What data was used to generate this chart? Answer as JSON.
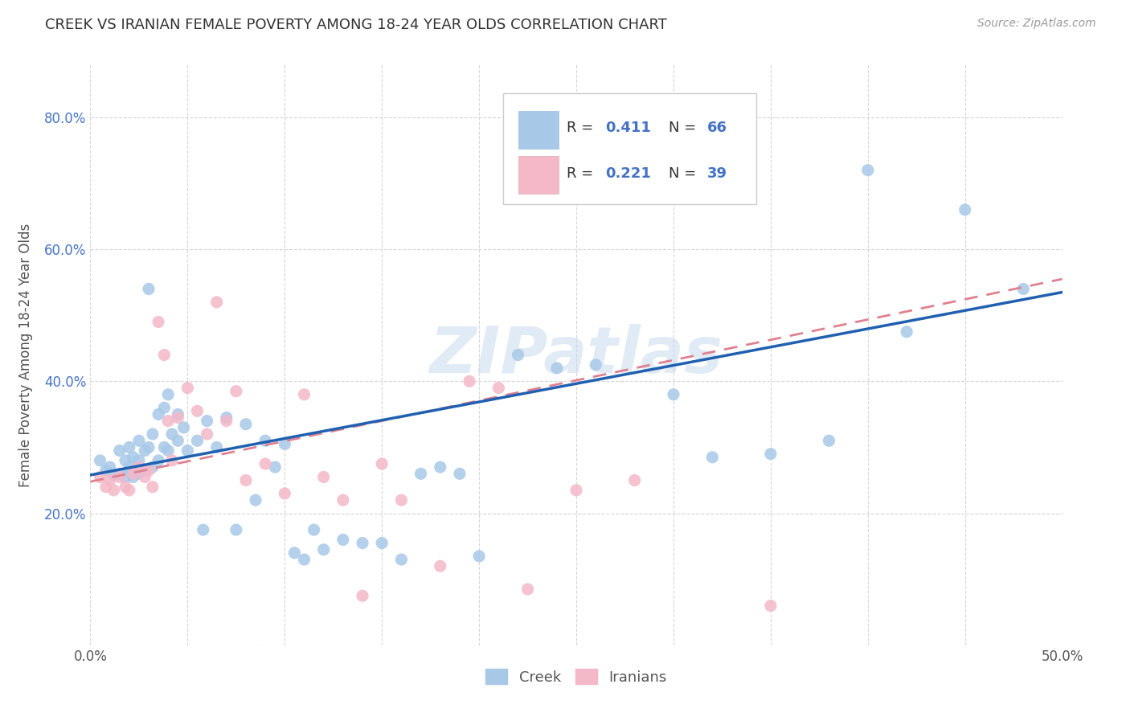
{
  "title": "CREEK VS IRANIAN FEMALE POVERTY AMONG 18-24 YEAR OLDS CORRELATION CHART",
  "source": "Source: ZipAtlas.com",
  "ylabel": "Female Poverty Among 18-24 Year Olds",
  "xlim": [
    0.0,
    0.5
  ],
  "ylim": [
    0.0,
    0.88
  ],
  "xticks": [
    0.0,
    0.05,
    0.1,
    0.15,
    0.2,
    0.25,
    0.3,
    0.35,
    0.4,
    0.45,
    0.5
  ],
  "xticklabels": [
    "0.0%",
    "",
    "",
    "",
    "",
    "",
    "",
    "",
    "",
    "",
    "50.0%"
  ],
  "yticks": [
    0.0,
    0.2,
    0.4,
    0.6,
    0.8
  ],
  "yticklabels": [
    "",
    "20.0%",
    "40.0%",
    "60.0%",
    "80.0%"
  ],
  "creek_color": "#a8c8e8",
  "iranians_color": "#f4b8c8",
  "creek_line_color": "#2060b0",
  "iranians_line_color": "#e08090",
  "creek_R": 0.411,
  "creek_N": 66,
  "iranians_R": 0.221,
  "iranians_N": 39,
  "background_color": "#ffffff",
  "grid_color": "#cccccc",
  "watermark": "ZIPatlas",
  "creek_x": [
    0.005,
    0.008,
    0.01,
    0.012,
    0.015,
    0.015,
    0.018,
    0.018,
    0.02,
    0.02,
    0.022,
    0.022,
    0.025,
    0.025,
    0.025,
    0.028,
    0.028,
    0.03,
    0.03,
    0.032,
    0.032,
    0.035,
    0.035,
    0.038,
    0.038,
    0.04,
    0.04,
    0.042,
    0.045,
    0.045,
    0.048,
    0.05,
    0.055,
    0.058,
    0.06,
    0.065,
    0.07,
    0.075,
    0.08,
    0.085,
    0.09,
    0.095,
    0.1,
    0.105,
    0.11,
    0.115,
    0.12,
    0.13,
    0.14,
    0.15,
    0.16,
    0.17,
    0.18,
    0.19,
    0.2,
    0.22,
    0.24,
    0.26,
    0.3,
    0.32,
    0.35,
    0.38,
    0.4,
    0.42,
    0.45,
    0.48
  ],
  "creek_y": [
    0.28,
    0.265,
    0.27,
    0.258,
    0.295,
    0.26,
    0.28,
    0.255,
    0.3,
    0.27,
    0.285,
    0.255,
    0.31,
    0.28,
    0.26,
    0.295,
    0.265,
    0.54,
    0.3,
    0.32,
    0.27,
    0.35,
    0.28,
    0.36,
    0.3,
    0.38,
    0.295,
    0.32,
    0.35,
    0.31,
    0.33,
    0.295,
    0.31,
    0.175,
    0.34,
    0.3,
    0.345,
    0.175,
    0.335,
    0.22,
    0.31,
    0.27,
    0.305,
    0.14,
    0.13,
    0.175,
    0.145,
    0.16,
    0.155,
    0.155,
    0.13,
    0.26,
    0.27,
    0.26,
    0.135,
    0.44,
    0.42,
    0.425,
    0.38,
    0.285,
    0.29,
    0.31,
    0.72,
    0.475,
    0.66,
    0.54
  ],
  "iranians_x": [
    0.005,
    0.008,
    0.01,
    0.012,
    0.015,
    0.018,
    0.02,
    0.022,
    0.025,
    0.028,
    0.03,
    0.032,
    0.035,
    0.038,
    0.04,
    0.042,
    0.045,
    0.05,
    0.055,
    0.06,
    0.065,
    0.07,
    0.075,
    0.08,
    0.09,
    0.1,
    0.11,
    0.12,
    0.13,
    0.14,
    0.15,
    0.16,
    0.18,
    0.195,
    0.21,
    0.225,
    0.25,
    0.28,
    0.35
  ],
  "iranians_y": [
    0.255,
    0.24,
    0.25,
    0.235,
    0.255,
    0.24,
    0.235,
    0.26,
    0.27,
    0.255,
    0.265,
    0.24,
    0.49,
    0.44,
    0.34,
    0.28,
    0.345,
    0.39,
    0.355,
    0.32,
    0.52,
    0.34,
    0.385,
    0.25,
    0.275,
    0.23,
    0.38,
    0.255,
    0.22,
    0.075,
    0.275,
    0.22,
    0.12,
    0.4,
    0.39,
    0.085,
    0.235,
    0.25,
    0.06
  ]
}
